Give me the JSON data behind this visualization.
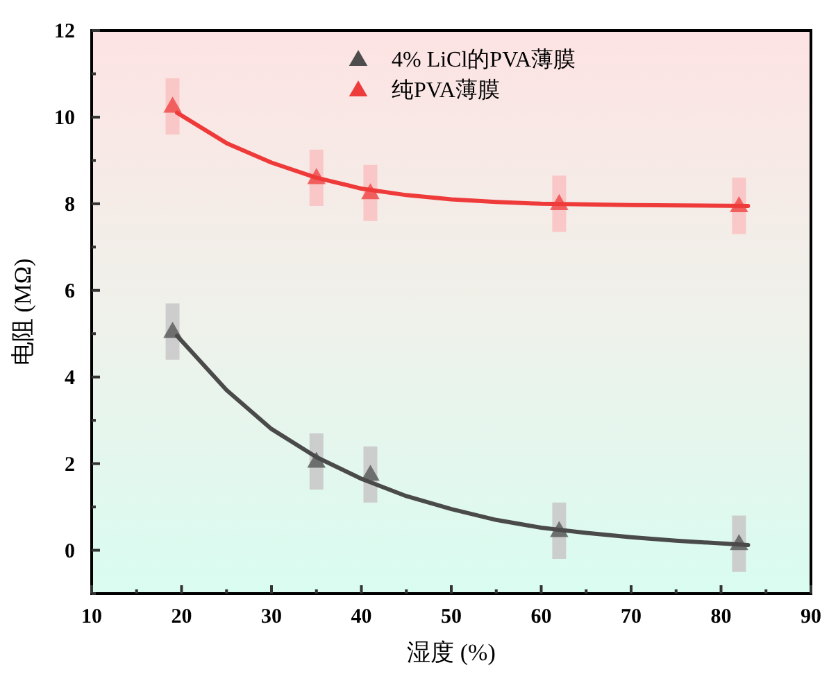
{
  "chart_data": {
    "type": "scatter",
    "xlabel": "湿度 (%)",
    "ylabel": "电阻 (MΩ)",
    "xlim": [
      10,
      90
    ],
    "ylim": [
      -1,
      12
    ],
    "xticks": [
      10,
      20,
      30,
      40,
      50,
      60,
      70,
      80,
      90
    ],
    "yticks": [
      0,
      2,
      4,
      6,
      8,
      10,
      12
    ],
    "grid": false,
    "legend": "top",
    "line_style": "solid",
    "series": [
      {
        "name": "4% LiCl的PVA薄膜",
        "marker": "triangle",
        "color": "#4d4d4d",
        "x": [
          19,
          35,
          41,
          62,
          82
        ],
        "values": [
          5.05,
          2.05,
          1.75,
          0.45,
          0.15
        ],
        "errors": [
          0.65,
          0.65,
          0.65,
          0.65,
          0.65
        ]
      },
      {
        "name": "纯PVA薄膜",
        "marker": "triangle",
        "color": "#ee3b3b",
        "x": [
          19,
          35,
          41,
          62,
          82
        ],
        "values": [
          10.25,
          8.6,
          8.25,
          8.0,
          7.95
        ],
        "errors": [
          0.65,
          0.65,
          0.65,
          0.65,
          0.65
        ]
      },
      {
        "type": "line",
        "marker": "none",
        "color": "#4a4a4a",
        "x": [
          19.5,
          25,
          30,
          35,
          40,
          45,
          50,
          55,
          60,
          65,
          70,
          75,
          83
        ],
        "values": [
          4.95,
          3.7,
          2.8,
          2.15,
          1.65,
          1.25,
          0.95,
          0.7,
          0.52,
          0.4,
          0.3,
          0.22,
          0.12
        ]
      },
      {
        "type": "line",
        "marker": "none",
        "color": "#ef3a3a",
        "x": [
          19.5,
          25,
          30,
          35,
          40,
          45,
          50,
          55,
          60,
          70,
          83
        ],
        "values": [
          10.1,
          9.4,
          8.95,
          8.6,
          8.35,
          8.2,
          8.1,
          8.04,
          8.0,
          7.97,
          7.95
        ]
      }
    ]
  }
}
